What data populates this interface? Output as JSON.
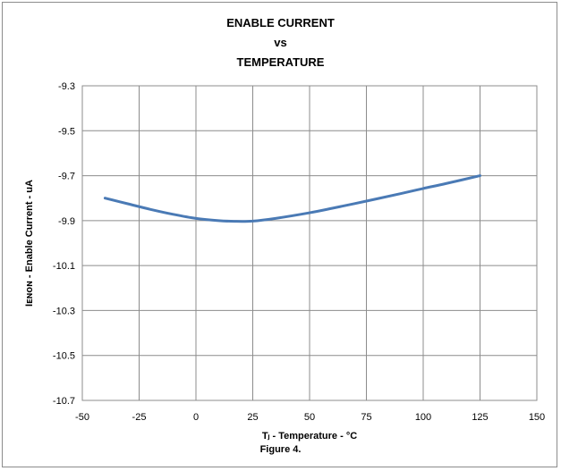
{
  "chart_data": {
    "type": "line",
    "title_lines": [
      "ENABLE CURRENT",
      "vs",
      "TEMPERATURE"
    ],
    "xlabel": "Tⱼ - Temperature - °C",
    "ylabel": "Iᴇɴᴏɴ - Enable Current - uA",
    "xlim": [
      -50,
      150
    ],
    "ylim": [
      -10.7,
      -9.3
    ],
    "xticks": [
      -50,
      -25,
      0,
      25,
      50,
      75,
      100,
      125,
      150
    ],
    "yticks": [
      -9.3,
      -9.5,
      -9.7,
      -9.9,
      -10.1,
      -10.3,
      -10.5,
      -10.7
    ],
    "grid": true,
    "line_color": "#4a7ab5",
    "series": [
      {
        "x": [
          -40,
          -30,
          -20,
          -10,
          0,
          10,
          17,
          25,
          35,
          50,
          60,
          75,
          90,
          100,
          110,
          125
        ],
        "values": [
          -9.8,
          -9.825,
          -9.85,
          -9.872,
          -9.89,
          -9.9,
          -9.903,
          -9.902,
          -9.89,
          -9.865,
          -9.845,
          -9.813,
          -9.78,
          -9.757,
          -9.735,
          -9.7
        ]
      }
    ]
  },
  "caption": "Figure 4."
}
